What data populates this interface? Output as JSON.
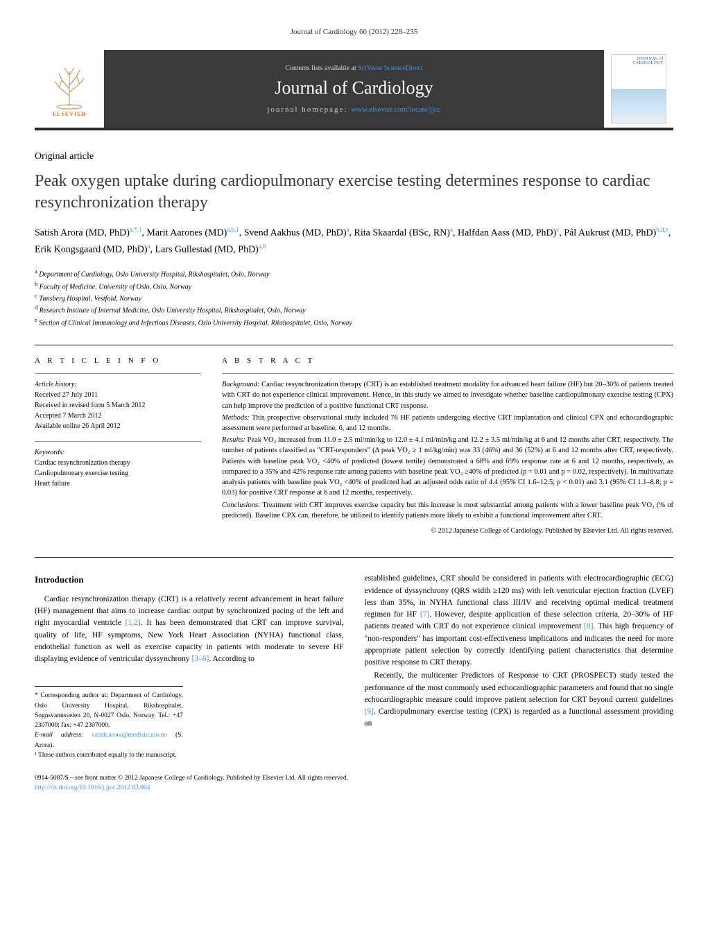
{
  "running_head": "Journal of Cardiology 60 (2012) 228–235",
  "header": {
    "contents_prefix": "Contents lists available at ",
    "contents_link": "SciVerse ScienceDirect",
    "journal": "Journal of Cardiology",
    "homepage_prefix": "journal homepage: ",
    "homepage_link": "www.elsevier.com/locate/jjcc",
    "publisher_mark": "ELSEVIER",
    "cover_title": "JOURNAL of CARDIOLOGY"
  },
  "article_type": "Original article",
  "title": "Peak oxygen uptake during cardiopulmonary exercise testing determines response to cardiac resynchronization therapy",
  "authors_html": "Satish Arora (MD, PhD)<sup>a,*,1</sup>, Marit Aarones (MD)<sup>a,b,1</sup>, Svend Aakhus (MD, PhD)<sup>a</sup>, Rita Skaardal (BSc, RN)<sup>a</sup>, Halfdan Aass (MD, PhD)<sup>c</sup>, Pål Aukrust (MD, PhD)<sup>b,d,e</sup>, Erik Kongsgaard (MD, PhD)<sup>a</sup>, Lars Gullestad (MD, PhD)<sup>a,b</sup>",
  "affiliations": [
    {
      "sup": "a",
      "text": "Department of Cardiology, Oslo University Hospital, Rikshospitalet, Oslo, Norway"
    },
    {
      "sup": "b",
      "text": "Faculty of Medicine, University of Oslo, Oslo, Norway"
    },
    {
      "sup": "c",
      "text": "Tønsberg Hospital, Vestfold, Norway"
    },
    {
      "sup": "d",
      "text": "Research Institute of Internal Medicine, Oslo University Hospital, Rikshospitalet, Oslo, Norway"
    },
    {
      "sup": "e",
      "text": "Section of Clinical Immunology and Infectious Diseases, Oslo University Hospital, Rikshospitalet, Oslo, Norway"
    }
  ],
  "article_info": {
    "heading": "a r t i c l e   i n f o",
    "history_label": "Article history:",
    "history": [
      "Received 27 July 2011",
      "Received in revised form 5 March 2012",
      "Accepted 7 March 2012",
      "Available online 26 April 2012"
    ],
    "keywords_label": "Keywords:",
    "keywords": [
      "Cardiac resynchronization therapy",
      "Cardiopulmonary exercise testing",
      "Heart failure"
    ]
  },
  "abstract": {
    "heading": "a b s t r a c t",
    "background_label": "Background:",
    "background": " Cardiac resynchronization therapy (CRT) is an established treatment modality for advanced heart failure (HF) but 20–30% of patients treated with CRT do not experience clinical improvement. Hence, in this study we aimed to investigate whether baseline cardiopulmonary exercise testing (CPX) can help improve the prediction of a positive functional CRT response.",
    "methods_label": "Methods:",
    "methods": " This prospective observational study included 76 HF patients undergoing elective CRT implantation and clinical CPX and echocardiographic assessment were performed at baseline, 6, and 12 months.",
    "results_label": "Results:",
    "results": " Peak VO₂ increased from 11.0 ± 2.5 ml/min/kg to 12.0 ± 4.1 ml/min/kg and 12.2 ± 3.5 ml/min/kg at 6 and 12 months after CRT, respectively. The number of patients classified as \"CRT-responders\" (Δ peak VO₂ ≥ 1 ml/kg/min) was 33 (46%) and 36 (52%) at 6 and 12 months after CRT, respectively. Patients with baseline peak VO₂ <40% of predicted (lowest tertile) demonstrated a 68% and 69% response rate at 6 and 12 months, respectively, as compared to a 35% and 42% response rate among patients with baseline peak VO₂ ≥40% of predicted (p = 0.01 and p = 0.02, respectively). In multivariate analysis patients with baseline peak VO₂ <40% of predicted had an adjusted odds ratio of 4.4 (95% CI 1.6–12.5; p < 0.01) and 3.1 (95% CI 1.1–8.8; p = 0.03) for positive CRT response at 6 and 12 months, respectively.",
    "conclusions_label": "Conclusions:",
    "conclusions": " Treatment with CRT improves exercise capacity but this increase is most substantial among patients with a lower baseline peak VO₂ (% of predicted). Baseline CPX can, therefore, be utilized to identify patients more likely to exhibit a functional improvement after CRT.",
    "copyright": "© 2012 Japanese College of Cardiology. Published by Elsevier Ltd. All rights reserved."
  },
  "intro_heading": "Introduction",
  "intro_col1": "Cardiac resynchronization therapy (CRT) is a relatively recent advancement in heart failure (HF) management that aims to increase cardiac output by synchronized pacing of the left and right myocardial ventricle <a class='ref'>[1,2]</a>. It has been demonstrated that CRT can improve survival, quality of life, HF symptoms, New York Heart Association (NYHA) functional class, endothelial function as well as exercise capacity in patients with moderate to severe HF displaying evidence of ventricular dyssynchrony <a class='ref'>[3–6]</a>. According to",
  "intro_col2_p1": "established guidelines, CRT should be considered in patients with electrocardiographic (ECG) evidence of dyssynchrony (QRS width ≥120 ms) with left ventricular ejection fraction (LVEF) less than 35%, in NYHA functional class III/IV and receiving optimal medical treatment regimen for HF <a class='ref'>[7]</a>. However, despite application of these selection criteria, 20–30% of HF patients treated with CRT do not experience clinical improvement <a class='ref'>[8]</a>. This high frequency of \"non-responders\" has important cost-effectiveness implications and indicates the need for more appropriate patient selection by correctly identifying patient characteristics that determine positive response to CRT therapy.",
  "intro_col2_p2": "Recently, the multicenter Predictors of Response to CRT (PROSPECT) study tested the performance of the most commonly used echocardiographic parameters and found that no single echocardiographic measure could improve patient selection for CRT beyond current guidelines <a class='ref'>[9]</a>. Cardiopulmonary exercise testing (CPX) is regarded as a functional assessment providing an",
  "footnotes": {
    "corr": "* Corresponding author at: Department of Cardiology, Oslo University Hospital, Rikshospitalet, Sognsvannsveien 20, N-0027 Oslo, Norway. Tel.: +47 2307000; fax: +47 2307000.",
    "email_label": "E-mail address: ",
    "email": "satish.arora@medisin.uio.no",
    "email_tail": " (S. Arora).",
    "equal": "¹ These authors contributed equally to the manuscript."
  },
  "end": {
    "copyright_line": "0914-5087/$ – see front matter © 2012 Japanese College of Cardiology. Published by Elsevier Ltd. All rights reserved.",
    "doi": "http://dx.doi.org/10.1016/j.jjcc.2012.03.004"
  },
  "colors": {
    "header_bg": "#3a3a3a",
    "link": "#4a90d9",
    "text": "#000000",
    "elsevier_orange": "#e8711c"
  }
}
